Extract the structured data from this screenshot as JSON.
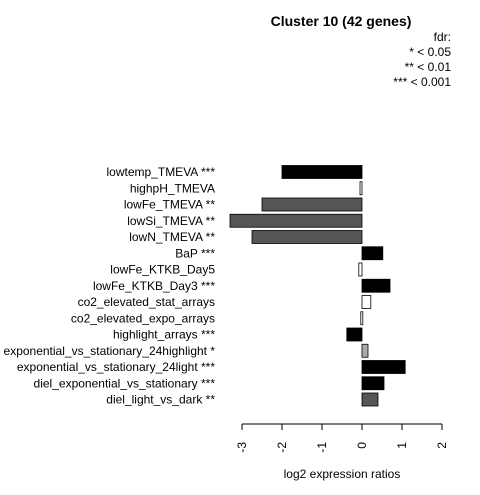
{
  "chart_data": {
    "type": "bar",
    "orientation": "horizontal",
    "title": "Cluster 10 (42 genes)",
    "xlabel": "log2 expression ratios",
    "ylabel": "",
    "xlim": [
      -3.3,
      2.0
    ],
    "xticks": [
      -3,
      -2,
      -1,
      0,
      1,
      2
    ],
    "grid": false,
    "legend": {
      "position": "top-right",
      "title": "fdr:",
      "entries": [
        "* < 0.05",
        "** < 0.01",
        "*** < 0.001"
      ]
    },
    "categories": [
      "lowtemp_TMEVA ***",
      "highpH_TMEVA",
      "lowFe_TMEVA **",
      "lowSi_TMEVA **",
      "lowN_TMEVA **",
      "BaP ***",
      "lowFe_KTKB_Day5",
      "lowFe_KTKB_Day3 ***",
      "co2_elevated_stat_arrays",
      "co2_elevated_expo_arrays",
      "highlight_arrays ***",
      "exponential_vs_stationary_24highlight *",
      "exponential_vs_stationary_24light ***",
      "diel_exponential_vs_stationary ***",
      "diel_light_vs_dark **"
    ],
    "values": [
      -2.0,
      -0.05,
      -2.5,
      -3.3,
      -2.75,
      0.52,
      -0.08,
      0.7,
      0.22,
      -0.03,
      -0.38,
      0.15,
      1.08,
      0.55,
      0.4
    ],
    "bar_colors": [
      "#000000",
      "#ffffff",
      "#555555",
      "#555555",
      "#555555",
      "#000000",
      "#ffffff",
      "#000000",
      "#ffffff",
      "#ffffff",
      "#000000",
      "#aaaaaa",
      "#000000",
      "#000000",
      "#555555"
    ]
  }
}
